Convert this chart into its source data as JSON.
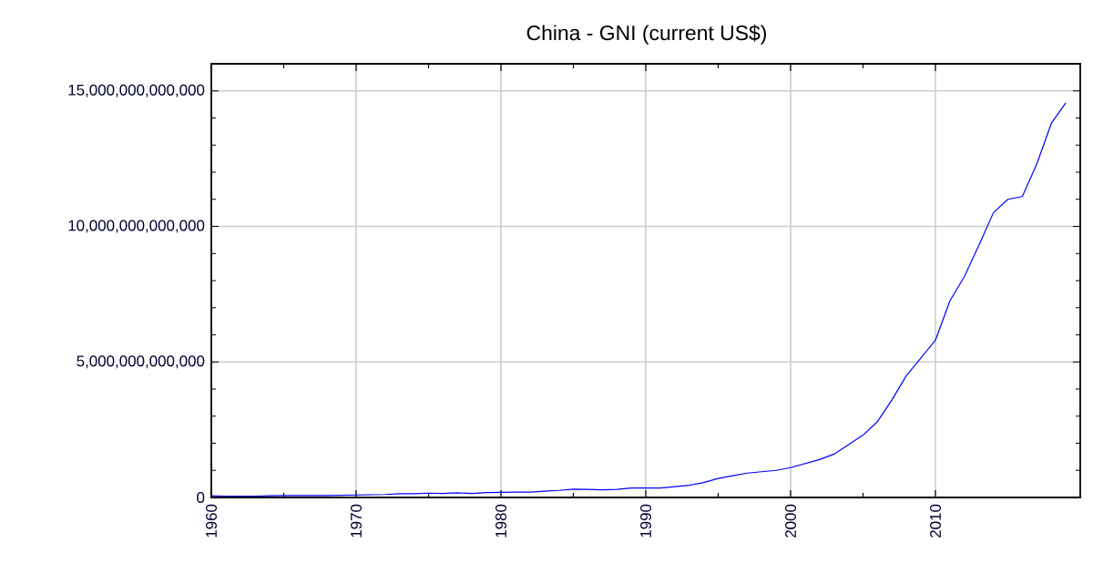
{
  "chart_data": {
    "type": "line",
    "title": "China - GNI (current US$)",
    "x": [
      1960,
      1961,
      1962,
      1963,
      1964,
      1965,
      1966,
      1967,
      1968,
      1969,
      1970,
      1971,
      1972,
      1973,
      1974,
      1975,
      1976,
      1977,
      1978,
      1979,
      1980,
      1981,
      1982,
      1983,
      1984,
      1985,
      1986,
      1987,
      1988,
      1989,
      1990,
      1991,
      1992,
      1993,
      1994,
      1995,
      1996,
      1997,
      1998,
      1999,
      2000,
      2001,
      2002,
      2003,
      2004,
      2005,
      2006,
      2007,
      2008,
      2009,
      2010,
      2011,
      2012,
      2013,
      2014,
      2015,
      2016,
      2017,
      2018,
      2019
    ],
    "series": [
      {
        "color": "#0000ff",
        "values": [
          60000000000.0,
          50000000000.0,
          50000000000.0,
          50000000000.0,
          60000000000.0,
          70000000000.0,
          70000000000.0,
          70000000000.0,
          70000000000.0,
          80000000000.0,
          90000000000.0,
          100000000000.0,
          110000000000.0,
          140000000000.0,
          140000000000.0,
          160000000000.0,
          150000000000.0,
          170000000000.0,
          150000000000.0,
          180000000000.0,
          190000000000.0,
          200000000000.0,
          200000000000.0,
          230000000000.0,
          260000000000.0,
          310000000000.0,
          300000000000.0,
          280000000000.0,
          300000000000.0,
          350000000000.0,
          350000000000.0,
          350000000000.0,
          400000000000.0,
          450000000000.0,
          550000000000.0,
          700000000000.0,
          800000000000.0,
          900000000000.0,
          950000000000.0,
          1000000000000.0,
          1100000000000.0,
          1250000000000.0,
          1400000000000.0,
          1600000000000.0,
          1950000000000.0,
          2300000000000.0,
          2800000000000.0,
          3600000000000.0,
          4500000000000.0,
          5150000000000.0,
          5800000000000.0,
          7250000000000.0,
          8150000000000.0,
          9300000000000.0,
          10500000000000.0,
          11000000000000.0,
          11100000000000.0,
          12300000000000.0,
          13800000000000.0,
          14560000000000.0
        ]
      }
    ],
    "xlim": [
      1960,
      2020
    ],
    "ylim": [
      0,
      16000000000000.0
    ],
    "xticks": [
      1960,
      1970,
      1980,
      1990,
      2000,
      2010
    ],
    "yticks": [
      0,
      {
        "value": 5000000000000.0,
        "label": "5,000,000,000,000"
      },
      {
        "value": 10000000000000.0,
        "label": "10,000,000,000,000"
      },
      {
        "value": 15000000000000.0,
        "label": "15,000,000,000,000"
      }
    ],
    "grid": true,
    "line_style": "solid"
  }
}
